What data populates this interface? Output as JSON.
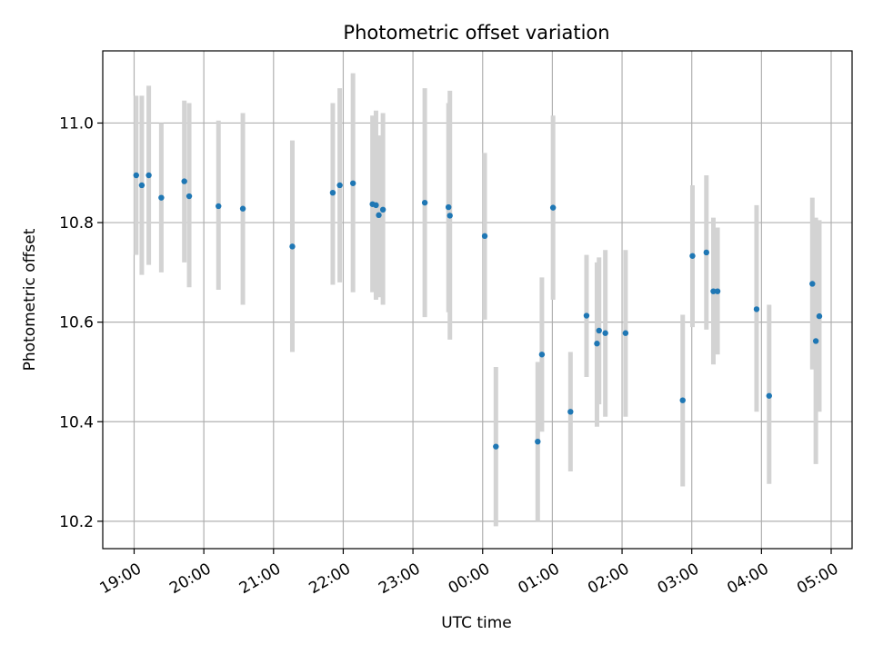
{
  "chart_data": {
    "type": "scatter",
    "title": "Photometric offset variation",
    "xlabel": "UTC time",
    "ylabel": "Photometric offset",
    "x_unit": "hours since 19:00 UTC",
    "xlim": [
      -0.45,
      10.3
    ],
    "ylim": [
      10.145,
      11.145
    ],
    "grid": true,
    "x_ticks": [
      {
        "value": 0,
        "label": "19:00"
      },
      {
        "value": 1,
        "label": "20:00"
      },
      {
        "value": 2,
        "label": "21:00"
      },
      {
        "value": 3,
        "label": "22:00"
      },
      {
        "value": 4,
        "label": "23:00"
      },
      {
        "value": 5,
        "label": "00:00"
      },
      {
        "value": 6,
        "label": "01:00"
      },
      {
        "value": 7,
        "label": "02:00"
      },
      {
        "value": 8,
        "label": "03:00"
      },
      {
        "value": 9,
        "label": "04:00"
      },
      {
        "value": 10,
        "label": "05:00"
      }
    ],
    "y_ticks": [
      {
        "value": 10.2,
        "label": "10.2"
      },
      {
        "value": 10.4,
        "label": "10.4"
      },
      {
        "value": 10.6,
        "label": "10.6"
      },
      {
        "value": 10.8,
        "label": "10.8"
      },
      {
        "value": 11.0,
        "label": "11.0"
      }
    ],
    "colors": {
      "point": "#1f77b4",
      "errorbar": "#d3d3d3",
      "grid": "#b0b0b0",
      "axis": "#000000"
    },
    "series": [
      {
        "name": "offset",
        "points": [
          {
            "x": 0.03,
            "y": 10.895,
            "lo": 10.735,
            "hi": 11.055
          },
          {
            "x": 0.11,
            "y": 10.875,
            "lo": 10.695,
            "hi": 11.055
          },
          {
            "x": 0.21,
            "y": 10.895,
            "lo": 10.715,
            "hi": 11.075
          },
          {
            "x": 0.39,
            "y": 10.85,
            "lo": 10.7,
            "hi": 11.0
          },
          {
            "x": 0.72,
            "y": 10.883,
            "lo": 10.72,
            "hi": 11.045
          },
          {
            "x": 0.79,
            "y": 10.853,
            "lo": 10.67,
            "hi": 11.04
          },
          {
            "x": 1.21,
            "y": 10.833,
            "lo": 10.665,
            "hi": 11.005
          },
          {
            "x": 1.56,
            "y": 10.828,
            "lo": 10.635,
            "hi": 11.02
          },
          {
            "x": 2.27,
            "y": 10.752,
            "lo": 10.54,
            "hi": 10.965
          },
          {
            "x": 2.85,
            "y": 10.86,
            "lo": 10.675,
            "hi": 11.04
          },
          {
            "x": 2.95,
            "y": 10.875,
            "lo": 10.68,
            "hi": 11.07
          },
          {
            "x": 3.14,
            "y": 10.879,
            "lo": 10.66,
            "hi": 11.1
          },
          {
            "x": 3.42,
            "y": 10.837,
            "lo": 10.66,
            "hi": 11.015
          },
          {
            "x": 3.47,
            "y": 10.835,
            "lo": 10.645,
            "hi": 11.025
          },
          {
            "x": 3.51,
            "y": 10.815,
            "lo": 10.65,
            "hi": 10.975
          },
          {
            "x": 3.57,
            "y": 10.826,
            "lo": 10.635,
            "hi": 11.02
          },
          {
            "x": 4.17,
            "y": 10.84,
            "lo": 10.61,
            "hi": 11.07
          },
          {
            "x": 4.51,
            "y": 10.831,
            "lo": 10.62,
            "hi": 11.04
          },
          {
            "x": 4.53,
            "y": 10.814,
            "lo": 10.565,
            "hi": 11.065
          },
          {
            "x": 5.03,
            "y": 10.773,
            "lo": 10.605,
            "hi": 10.94
          },
          {
            "x": 5.19,
            "y": 10.35,
            "lo": 10.19,
            "hi": 10.51
          },
          {
            "x": 5.79,
            "y": 10.36,
            "lo": 10.2,
            "hi": 10.52
          },
          {
            "x": 5.85,
            "y": 10.535,
            "lo": 10.38,
            "hi": 10.69
          },
          {
            "x": 6.01,
            "y": 10.83,
            "lo": 10.645,
            "hi": 11.015
          },
          {
            "x": 6.26,
            "y": 10.42,
            "lo": 10.3,
            "hi": 10.54
          },
          {
            "x": 6.49,
            "y": 10.613,
            "lo": 10.49,
            "hi": 10.735
          },
          {
            "x": 6.64,
            "y": 10.557,
            "lo": 10.39,
            "hi": 10.72
          },
          {
            "x": 6.67,
            "y": 10.583,
            "lo": 10.435,
            "hi": 10.73
          },
          {
            "x": 6.76,
            "y": 10.578,
            "lo": 10.41,
            "hi": 10.745
          },
          {
            "x": 7.05,
            "y": 10.578,
            "lo": 10.41,
            "hi": 10.745
          },
          {
            "x": 7.87,
            "y": 10.443,
            "lo": 10.27,
            "hi": 10.615
          },
          {
            "x": 8.01,
            "y": 10.733,
            "lo": 10.59,
            "hi": 10.875
          },
          {
            "x": 8.21,
            "y": 10.74,
            "lo": 10.585,
            "hi": 10.895
          },
          {
            "x": 8.31,
            "y": 10.662,
            "lo": 10.515,
            "hi": 10.81
          },
          {
            "x": 8.37,
            "y": 10.662,
            "lo": 10.535,
            "hi": 10.79
          },
          {
            "x": 8.93,
            "y": 10.626,
            "lo": 10.42,
            "hi": 10.835
          },
          {
            "x": 9.11,
            "y": 10.452,
            "lo": 10.275,
            "hi": 10.635
          },
          {
            "x": 9.73,
            "y": 10.677,
            "lo": 10.505,
            "hi": 10.85
          },
          {
            "x": 9.78,
            "y": 10.562,
            "lo": 10.315,
            "hi": 10.81
          },
          {
            "x": 9.83,
            "y": 10.612,
            "lo": 10.42,
            "hi": 10.805
          }
        ]
      }
    ]
  }
}
